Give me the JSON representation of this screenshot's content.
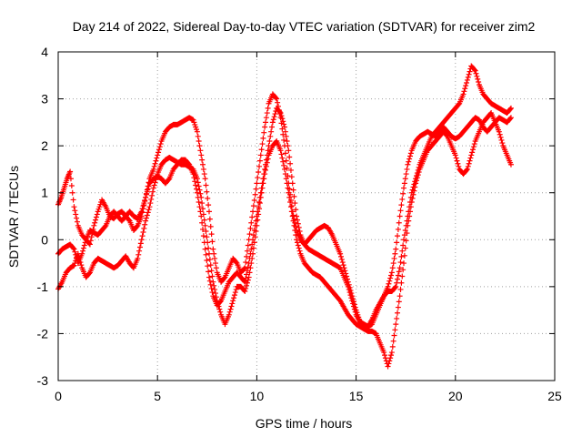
{
  "chart_data": {
    "type": "scatter",
    "title": "Day 214 of 2022, Sidereal Day-to-day VTEC variation (SDTVAR) for receiver zim2",
    "xlabel": "GPS time / hours",
    "ylabel": "SDTVAR / TECUs",
    "xlim": [
      0,
      25
    ],
    "ylim": [
      -3,
      4
    ],
    "xticks": [
      0,
      5,
      10,
      15,
      20,
      25
    ],
    "yticks": [
      -3,
      -2,
      -1,
      0,
      1,
      2,
      3,
      4
    ],
    "grid": true,
    "marker": "+",
    "color": "#ff0000",
    "series": [
      {
        "x": [
          0.0,
          0.15,
          0.3,
          0.45,
          0.6,
          0.8,
          1.0,
          1.2,
          1.4,
          1.6,
          1.8,
          2.0,
          2.2,
          2.4,
          2.6,
          2.8,
          3.0,
          3.2,
          3.4,
          3.6,
          3.8,
          4.0,
          4.2,
          4.4,
          4.6,
          4.8,
          5.0,
          5.2,
          5.4,
          5.6,
          5.8,
          6.0,
          6.2,
          6.4,
          6.6,
          6.8,
          7.0,
          7.2,
          7.4,
          7.6,
          7.8,
          8.0,
          8.2,
          8.4,
          8.6,
          8.8,
          9.0,
          9.2,
          9.4,
          9.6,
          9.8,
          10.0,
          10.2,
          10.4,
          10.6,
          10.8,
          11.0,
          11.2,
          11.4,
          11.6,
          11.8,
          12.0,
          12.2,
          12.4,
          12.6,
          12.8,
          13.0,
          13.2,
          13.4,
          13.6,
          13.8,
          14.0,
          14.2,
          14.4,
          14.6,
          14.8,
          15.0,
          15.2,
          15.4,
          15.6,
          15.8,
          16.0,
          16.2,
          16.4,
          16.6,
          16.8,
          17.0,
          17.2,
          17.4,
          17.6,
          17.8,
          18.0,
          18.2,
          18.4,
          18.6,
          18.8,
          19.0,
          19.2,
          19.4,
          19.6,
          19.8,
          20.0,
          20.2,
          20.4,
          20.6,
          20.8,
          21.0,
          21.2,
          21.4,
          21.6,
          21.8,
          22.0,
          22.2,
          22.4,
          22.6,
          22.8
        ],
        "y": [
          0.75,
          0.9,
          1.1,
          1.3,
          1.45,
          0.7,
          0.3,
          0.1,
          0.0,
          -0.1,
          0.3,
          0.6,
          0.85,
          0.7,
          0.5,
          0.45,
          0.55,
          0.6,
          0.5,
          0.4,
          0.2,
          0.3,
          0.5,
          0.9,
          1.3,
          1.5,
          1.8,
          2.1,
          2.3,
          2.4,
          2.45,
          2.45,
          2.5,
          2.55,
          2.6,
          2.55,
          2.3,
          1.8,
          1.3,
          0.6,
          -0.2,
          -0.7,
          -0.9,
          -0.8,
          -0.6,
          -0.4,
          -0.5,
          -0.7,
          -0.6,
          0.0,
          0.6,
          1.2,
          1.8,
          2.4,
          2.9,
          3.1,
          3.0,
          2.6,
          2.0,
          1.2,
          0.6,
          0.2,
          0.0,
          -0.1,
          0.0,
          0.1,
          0.2,
          0.25,
          0.3,
          0.25,
          0.1,
          -0.1,
          -0.3,
          -0.6,
          -0.9,
          -1.2,
          -1.5,
          -1.75,
          -1.9,
          -1.85,
          -1.7,
          -1.5,
          -1.35,
          -1.2,
          -1.0,
          -0.7,
          -0.2,
          0.5,
          1.1,
          1.6,
          1.9,
          2.1,
          2.2,
          2.25,
          2.3,
          2.25,
          2.2,
          2.3,
          2.4,
          2.3,
          2.2,
          2.15,
          2.2,
          2.3,
          2.4,
          2.5,
          2.6,
          2.55,
          2.4,
          2.3,
          2.4,
          2.5,
          2.6,
          2.55,
          2.5,
          2.6
        ]
      },
      {
        "x": [
          0.0,
          0.2,
          0.4,
          0.6,
          0.8,
          1.0,
          1.2,
          1.4,
          1.6,
          1.8,
          2.0,
          2.2,
          2.4,
          2.6,
          2.8,
          3.0,
          3.2,
          3.4,
          3.6,
          3.8,
          4.0,
          4.2,
          4.4,
          4.6,
          4.8,
          5.0,
          5.2,
          5.4,
          5.6,
          5.8,
          6.0,
          6.2,
          6.4,
          6.6,
          6.8,
          7.0,
          7.2,
          7.4,
          7.6,
          7.8,
          8.0,
          8.2,
          8.4,
          8.6,
          8.8,
          9.0,
          9.2,
          9.4,
          9.6,
          9.8,
          10.0,
          10.2,
          10.4,
          10.6,
          10.8,
          11.0,
          11.2,
          11.4,
          11.6,
          11.8,
          12.0,
          12.2,
          12.4,
          12.6,
          12.8,
          13.0,
          13.2,
          13.4,
          13.6,
          13.8,
          14.0,
          14.2,
          14.4,
          14.6,
          14.8,
          15.0,
          15.2,
          15.4,
          15.6,
          15.8,
          16.0,
          16.2,
          16.4,
          16.6,
          16.8,
          17.0,
          17.2,
          17.4,
          17.6,
          17.8,
          18.0,
          18.2,
          18.4,
          18.6,
          18.8,
          19.0,
          19.2,
          19.4,
          19.6,
          19.8,
          20.0,
          20.2,
          20.4,
          20.6,
          20.8,
          21.0,
          21.2,
          21.4,
          21.6,
          21.8,
          22.0,
          22.2,
          22.4,
          22.6,
          22.8
        ],
        "y": [
          -1.05,
          -0.9,
          -0.7,
          -0.6,
          -0.55,
          -0.3,
          -0.6,
          -0.8,
          -0.7,
          -0.5,
          -0.4,
          -0.45,
          -0.5,
          -0.55,
          -0.6,
          -0.55,
          -0.45,
          -0.35,
          -0.5,
          -0.6,
          -0.4,
          0.0,
          0.4,
          0.7,
          1.1,
          1.4,
          1.6,
          1.7,
          1.75,
          1.7,
          1.65,
          1.6,
          1.6,
          1.55,
          1.5,
          1.3,
          0.9,
          0.3,
          -0.3,
          -0.9,
          -1.3,
          -1.6,
          -1.8,
          -1.6,
          -1.3,
          -1.0,
          -1.0,
          -1.1,
          -0.8,
          -0.3,
          0.3,
          0.9,
          1.4,
          1.8,
          2.0,
          2.1,
          1.9,
          1.5,
          1.0,
          0.5,
          0.0,
          -0.3,
          -0.5,
          -0.6,
          -0.7,
          -0.75,
          -0.8,
          -0.9,
          -1.0,
          -1.1,
          -1.2,
          -1.3,
          -1.45,
          -1.6,
          -1.7,
          -1.8,
          -1.85,
          -1.9,
          -1.95,
          -1.95,
          -2.0,
          -2.2,
          -2.4,
          -2.7,
          -2.4,
          -1.8,
          -1.2,
          -0.5,
          0.3,
          0.8,
          1.2,
          1.5,
          1.7,
          1.9,
          2.0,
          2.1,
          2.2,
          2.3,
          2.2,
          2.0,
          1.8,
          1.5,
          1.4,
          1.5,
          1.8,
          2.1,
          2.3,
          2.5,
          2.6,
          2.7,
          2.5,
          2.3,
          2.0,
          1.8,
          1.6
        ]
      },
      {
        "x": [
          0.0,
          0.2,
          0.4,
          0.6,
          0.8,
          1.0,
          1.2,
          1.4,
          1.6,
          1.8,
          2.0,
          2.2,
          2.4,
          2.6,
          2.8,
          3.0,
          3.2,
          3.4,
          3.6,
          3.8,
          4.0,
          4.2,
          4.4,
          4.6,
          4.8,
          5.0,
          5.2,
          5.4,
          5.6,
          5.8,
          6.0,
          6.2,
          6.4,
          6.6,
          6.8,
          7.0,
          7.2,
          7.4,
          7.6,
          7.8,
          8.0,
          8.2,
          8.4,
          8.6,
          8.8,
          9.0,
          9.2,
          9.4,
          9.6,
          9.8,
          10.0,
          10.2,
          10.4,
          10.6,
          10.8,
          11.0,
          11.2,
          11.4,
          11.6,
          11.8,
          12.0,
          12.2,
          12.4,
          12.6,
          12.8,
          13.0,
          13.2,
          13.4,
          13.6,
          13.8,
          14.0,
          14.2,
          14.4,
          14.6,
          14.8,
          15.0,
          15.2,
          15.4,
          15.6,
          15.8,
          16.0,
          16.2,
          16.4,
          16.6,
          16.8,
          17.0,
          17.2,
          17.4,
          17.6,
          17.8,
          18.0,
          18.2,
          18.4,
          18.6,
          18.8,
          19.0,
          19.2,
          19.4,
          19.6,
          19.8,
          20.0,
          20.2,
          20.4,
          20.6,
          20.8,
          21.0,
          21.2,
          21.4,
          21.6,
          21.8,
          22.0,
          22.2,
          22.4,
          22.6,
          22.8
        ],
        "y": [
          -0.3,
          -0.2,
          -0.15,
          -0.1,
          -0.2,
          -0.5,
          -0.3,
          0.0,
          0.2,
          0.15,
          0.1,
          0.2,
          0.3,
          0.5,
          0.6,
          0.5,
          0.4,
          0.5,
          0.6,
          0.5,
          0.45,
          0.6,
          0.9,
          1.2,
          1.3,
          1.35,
          1.3,
          1.2,
          1.3,
          1.5,
          1.6,
          1.7,
          1.7,
          1.6,
          1.4,
          1.0,
          0.5,
          -0.2,
          -0.8,
          -1.2,
          -1.4,
          -1.3,
          -1.1,
          -0.9,
          -0.8,
          -0.7,
          -0.8,
          -0.9,
          -0.5,
          0.0,
          0.5,
          1.0,
          1.5,
          2.0,
          2.5,
          2.8,
          2.7,
          2.4,
          1.9,
          1.2,
          0.5,
          0.1,
          -0.1,
          -0.2,
          -0.25,
          -0.3,
          -0.35,
          -0.4,
          -0.45,
          -0.5,
          -0.55,
          -0.6,
          -0.8,
          -1.0,
          -1.3,
          -1.6,
          -1.75,
          -1.8,
          -1.85,
          -1.8,
          -1.6,
          -1.4,
          -1.2,
          -1.1,
          -1.1,
          -1.0,
          -0.6,
          0.0,
          0.5,
          1.0,
          1.3,
          1.6,
          1.8,
          2.0,
          2.2,
          2.3,
          2.4,
          2.5,
          2.6,
          2.7,
          2.8,
          2.9,
          3.1,
          3.4,
          3.7,
          3.6,
          3.3,
          3.1,
          3.0,
          2.9,
          2.85,
          2.8,
          2.75,
          2.7,
          2.8
        ]
      }
    ]
  }
}
